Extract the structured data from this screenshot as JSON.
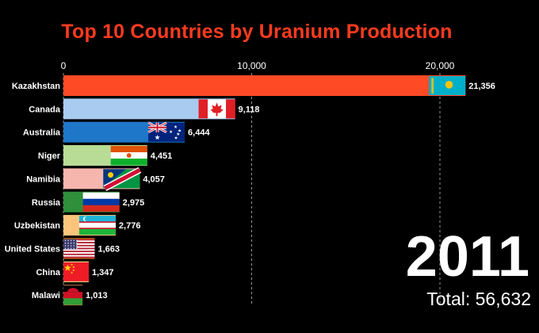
{
  "chart_data": {
    "type": "bar",
    "orientation": "horizontal",
    "title": "Top 10 Countries by Uranium Production",
    "xlabel": "",
    "ylabel": "",
    "xlim": [
      0,
      23800
    ],
    "x_ticks": [
      0,
      10000,
      20000
    ],
    "x_tick_labels": [
      "0",
      "10,000",
      "20,000"
    ],
    "grid": true,
    "categories": [
      "Kazakhstan",
      "Canada",
      "Australia",
      "Niger",
      "Namibia",
      "Russia",
      "Uzbekistan",
      "United States",
      "China",
      "Malawi"
    ],
    "values": [
      21356,
      9118,
      6444,
      4451,
      4057,
      2975,
      2776,
      1663,
      1347,
      1013
    ],
    "value_labels": [
      "21,356",
      "9,118",
      "6,444",
      "4,451",
      "4,057",
      "2,975",
      "2,776",
      "1,663",
      "1,347",
      "1,013"
    ],
    "bar_colors": [
      "#ff4a26",
      "#a9cbf0",
      "#1f77c9",
      "#b8dc96",
      "#f7b6ad",
      "#2f8f3a",
      "#fdc57c",
      "#ff8a0e",
      "#fff39a",
      "#b7744a"
    ],
    "flag_icons": [
      "kazakhstan-flag-icon",
      "canada-flag-icon",
      "australia-flag-icon",
      "niger-flag-icon",
      "namibia-flag-icon",
      "russia-flag-icon",
      "uzbekistan-flag-icon",
      "united-states-flag-icon",
      "china-flag-icon",
      "malawi-flag-icon"
    ],
    "year": "2011",
    "total_label": "Total:",
    "total_value": "56,632"
  },
  "colors": {
    "background": "#000000",
    "title": "#ff3b1f",
    "text": "#ffffff",
    "grid": "#bbbbbb"
  }
}
